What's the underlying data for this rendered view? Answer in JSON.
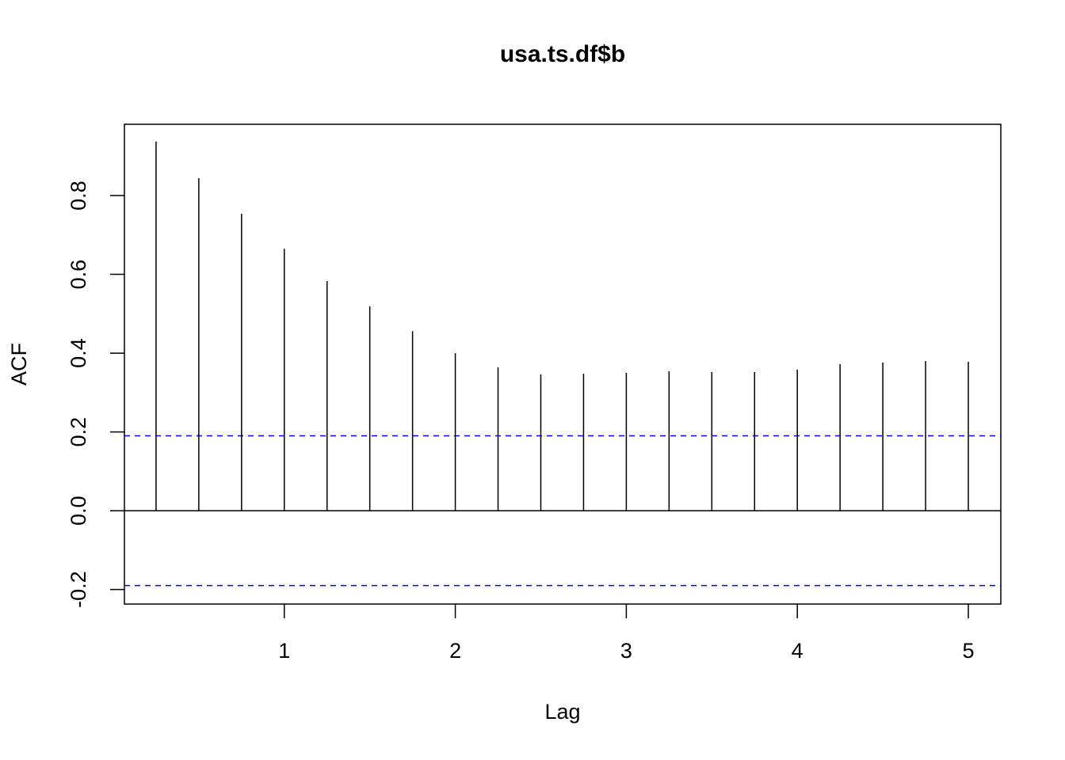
{
  "chart_data": {
    "type": "acf",
    "title": "usa.ts.df$b",
    "x_label": "Lag",
    "y_label": "ACF",
    "x": [
      0.25,
      0.5,
      0.75,
      1,
      1.25,
      1.5,
      1.75,
      2,
      2.25,
      2.5,
      2.75,
      3,
      3.25,
      3.5,
      3.75,
      4,
      4.25,
      4.5,
      4.75,
      5
    ],
    "values": [
      0.937,
      0.844,
      0.754,
      0.665,
      0.583,
      0.519,
      0.456,
      0.4,
      0.364,
      0.346,
      0.348,
      0.35,
      0.354,
      0.352,
      0.352,
      0.358,
      0.372,
      0.376,
      0.38,
      0.378
    ],
    "color": "#000000",
    "confidence_bounds": [
      0.19,
      -0.19
    ],
    "confidence_color": "#0000ff",
    "xlim": [
      0.065,
      5.19
    ],
    "ylim": [
      -0.237,
      0.981
    ],
    "xticks": [
      1,
      2,
      3,
      4,
      5
    ],
    "yticks": [
      -0.2,
      {
        "value": 0,
        "label": "0.0"
      },
      0.2,
      0.4,
      0.6,
      0.8
    ]
  }
}
